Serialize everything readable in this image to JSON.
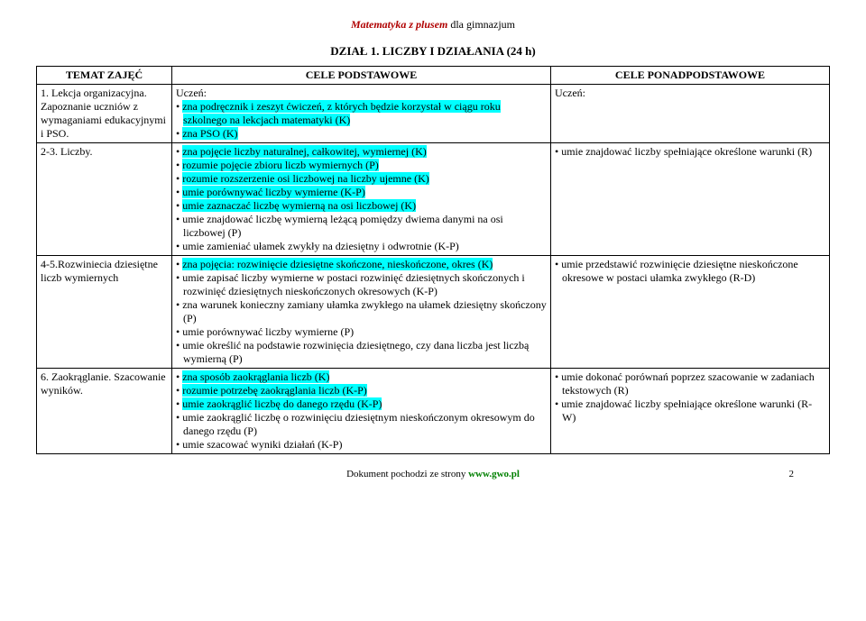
{
  "series": {
    "bold": "Matematyka z plusem",
    "rest": " dla gimnazjum"
  },
  "section_title": "DZIAŁ 1. LICZBY I DZIAŁANIA (24 h)",
  "headers": {
    "c1": "TEMAT ZAJĘĆ",
    "c2": "CELE PODSTAWOWE",
    "c3": "CELE PONADPODSTAWOWE"
  },
  "uczen": "Uczeń:",
  "rows": [
    {
      "topic": "1. Lekcja organizacyjna. Zapoznanie uczniów z wymaganiami edukacyjnymi i PSO.",
      "c2": [
        {
          "t": "zna podręcznik i zeszyt ćwiczeń, z których będzie korzystał w ciągu roku szkolnego na lekcjach matematyki (K)",
          "hl": true
        },
        {
          "t": "zna PSO (K)",
          "hl": true
        }
      ],
      "c3": []
    },
    {
      "topic": "2-3. Liczby.",
      "c2": [
        {
          "t": "zna pojęcie liczby naturalnej, całkowitej, wymiernej (K)",
          "hl": true
        },
        {
          "t": "rozumie pojęcie zbioru liczb wymiernych (P)",
          "hl": true
        },
        {
          "t": "rozumie rozszerzenie osi liczbowej na liczby ujemne (K)",
          "hl": true
        },
        {
          "t": "umie porównywać liczby wymierne (K-P)",
          "hl": true
        },
        {
          "t": "umie zaznaczać liczbę wymierną na osi liczbowej (K)",
          "hl": true
        },
        {
          "t": "umie znajdować liczbę wymierną leżącą pomiędzy dwiema danymi na osi liczbowej (P)"
        },
        {
          "t": "umie zamieniać ułamek zwykły na dziesiętny i odwrotnie (K-P)"
        }
      ],
      "c3": [
        {
          "t": "umie znajdować liczby spełniające określone warunki (R)"
        }
      ]
    },
    {
      "topic": "4-5.Rozwiniecia dziesiętne liczb wymiernych",
      "c2": [
        {
          "t": "zna pojęcia: rozwinięcie dziesiętne skończone, nieskończone, okres (K)",
          "hl": true
        },
        {
          "t": "umie zapisać liczby wymierne w postaci rozwinięć dziesiętnych skończonych i rozwinięć dziesiętnych nieskończonych okresowych (K-P)"
        },
        {
          "t": "zna warunek konieczny zamiany ułamka zwykłego na ułamek dziesiętny skończony (P)"
        },
        {
          "t": "umie porównywać liczby wymierne (P)"
        },
        {
          "t": "umie określić na podstawie rozwinięcia dziesiętnego, czy dana liczba jest liczbą wymierną (P)"
        }
      ],
      "c3": [
        {
          "t": "umie przedstawić rozwinięcie dziesiętne nieskończone okresowe w postaci ułamka zwykłego (R-D)"
        }
      ]
    },
    {
      "topic": "6. Zaokrąglanie. Szacowanie wyników.",
      "c2": [
        {
          "t": "zna sposób zaokrąglania liczb (K)",
          "hl": true
        },
        {
          "t": "rozumie potrzebę zaokrąglania liczb (K-P)",
          "hl": true
        },
        {
          "t": "umie zaokrąglić liczbę do danego rzędu (K-P)",
          "hl": true
        },
        {
          "t": "umie zaokrąglić liczbę o rozwinięciu dziesiętnym nieskończonym okresowym do danego rzędu (P)"
        },
        {
          "t": "umie szacować wyniki działań (K-P)"
        }
      ],
      "c3": [
        {
          "t": "umie dokonać porównań poprzez szacowanie w zadaniach tekstowych (R)"
        },
        {
          "t": "umie znajdować liczby spełniające określone warunki (R-W)"
        }
      ]
    }
  ],
  "footer": {
    "text": "Dokument pochodzi ze strony ",
    "url": "www.gwo.pl",
    "page": "2"
  }
}
